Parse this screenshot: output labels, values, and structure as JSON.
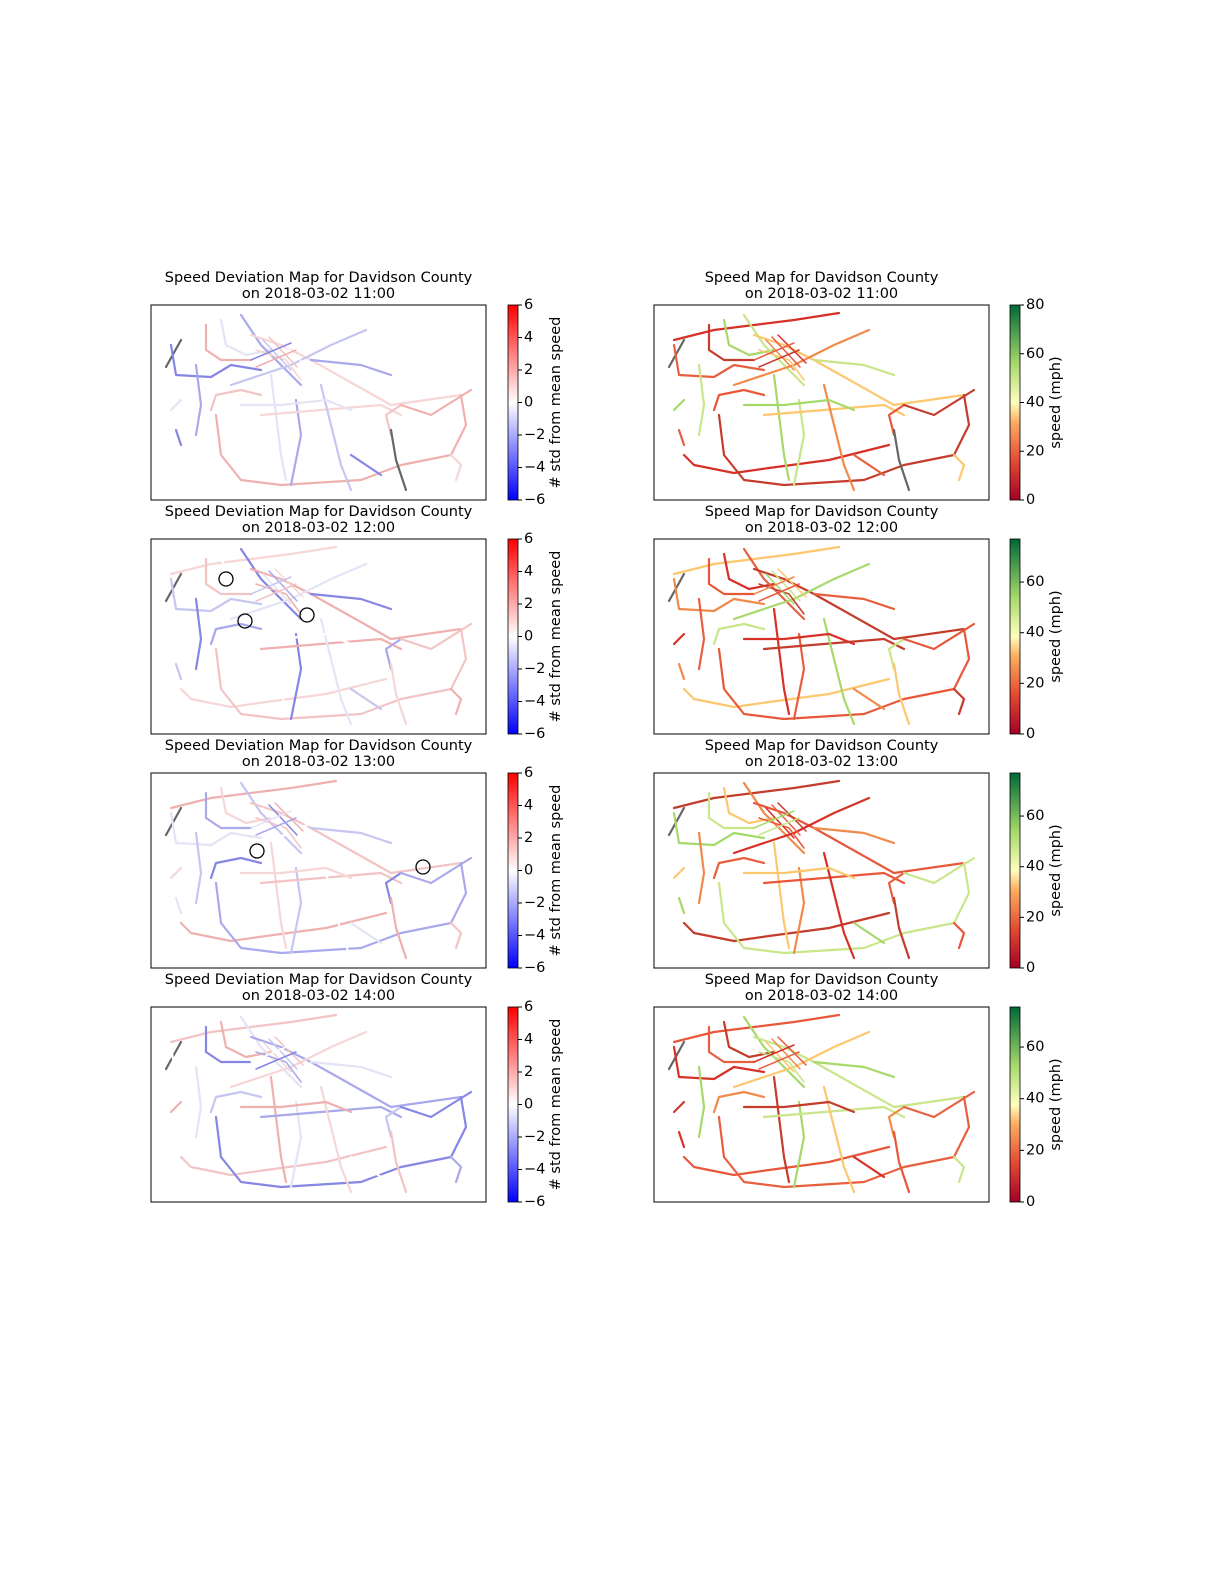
{
  "rows": [
    {
      "deviation": {
        "title": [
          "Speed Deviation Map for Davidson County",
          "on 2018-03-02 11:00"
        ],
        "colorbar": {
          "label": "# std from mean speed",
          "lim": [
            -6,
            6
          ],
          "ticks": [
            {
              "value": 6,
              "label": "6"
            },
            {
              "value": 4,
              "label": "4"
            },
            {
              "value": 2,
              "label": "2"
            },
            {
              "value": 0,
              "label": "0"
            },
            {
              "value": -2,
              "label": "−2"
            },
            {
              "value": -4,
              "label": "−4"
            },
            {
              "value": -6,
              "label": "−6"
            }
          ]
        }
      },
      "speed": {
        "title": [
          "Speed Map for Davidson County",
          "on 2018-03-02 11:00"
        ],
        "colorbar": {
          "label": "speed (mph)",
          "lim": [
            0,
            80
          ],
          "ticks": [
            {
              "value": 0,
              "label": "0"
            },
            {
              "value": 20,
              "label": "20"
            },
            {
              "value": 40,
              "label": "40"
            },
            {
              "value": 60,
              "label": "60"
            },
            {
              "value": 80,
              "label": "80"
            }
          ]
        }
      }
    },
    {
      "deviation": {
        "title": [
          "Speed Deviation Map for Davidson County",
          "on 2018-03-02 12:00"
        ],
        "colorbar": {
          "label": "# std from mean speed",
          "lim": [
            -6,
            6
          ],
          "ticks": [
            {
              "value": 6,
              "label": "6"
            },
            {
              "value": 4,
              "label": "4"
            },
            {
              "value": 2,
              "label": "2"
            },
            {
              "value": 0,
              "label": "0"
            },
            {
              "value": -2,
              "label": "−2"
            },
            {
              "value": -4,
              "label": "−4"
            },
            {
              "value": -6,
              "label": "−6"
            }
          ]
        }
      },
      "speed": {
        "title": [
          "Speed Map for Davidson County",
          "on 2018-03-02 12:00"
        ],
        "colorbar": {
          "label": "speed (mph)",
          "lim": [
            0,
            77
          ],
          "ticks": [
            {
              "value": 0,
              "label": "0"
            },
            {
              "value": 20,
              "label": "20"
            },
            {
              "value": 40,
              "label": "40"
            },
            {
              "value": 60,
              "label": "60"
            }
          ]
        }
      }
    },
    {
      "deviation": {
        "title": [
          "Speed Deviation Map for Davidson County",
          "on 2018-03-02 13:00"
        ],
        "colorbar": {
          "label": "# std from mean speed",
          "lim": [
            -6,
            6
          ],
          "ticks": [
            {
              "value": 6,
              "label": "6"
            },
            {
              "value": 4,
              "label": "4"
            },
            {
              "value": 2,
              "label": "2"
            },
            {
              "value": 0,
              "label": "0"
            },
            {
              "value": -2,
              "label": "−2"
            },
            {
              "value": -4,
              "label": "−4"
            },
            {
              "value": -6,
              "label": "−6"
            }
          ]
        }
      },
      "speed": {
        "title": [
          "Speed Map for Davidson County",
          "on 2018-03-02 13:00"
        ],
        "colorbar": {
          "label": "speed (mph)",
          "lim": [
            0,
            77
          ],
          "ticks": [
            {
              "value": 0,
              "label": "0"
            },
            {
              "value": 20,
              "label": "20"
            },
            {
              "value": 40,
              "label": "40"
            },
            {
              "value": 60,
              "label": "60"
            }
          ]
        }
      }
    },
    {
      "deviation": {
        "title": [
          "Speed Deviation Map for Davidson County",
          "on 2018-03-02 14:00"
        ],
        "colorbar": {
          "label": "# std from mean speed",
          "lim": [
            -6,
            6
          ],
          "ticks": [
            {
              "value": 6,
              "label": "6"
            },
            {
              "value": 4,
              "label": "4"
            },
            {
              "value": 2,
              "label": "2"
            },
            {
              "value": 0,
              "label": "0"
            },
            {
              "value": -2,
              "label": "−2"
            },
            {
              "value": -4,
              "label": "−4"
            },
            {
              "value": -6,
              "label": "−6"
            }
          ]
        }
      },
      "speed": {
        "title": [
          "Speed Map for Davidson County",
          "on 2018-03-02 14:00"
        ],
        "colorbar": {
          "label": "speed (mph)",
          "lim": [
            0,
            75.5
          ],
          "ticks": [
            {
              "value": 0,
              "label": "0"
            },
            {
              "value": 20,
              "label": "20"
            },
            {
              "value": 40,
              "label": "40"
            },
            {
              "value": 60,
              "label": "60"
            }
          ]
        }
      }
    }
  ]
}
